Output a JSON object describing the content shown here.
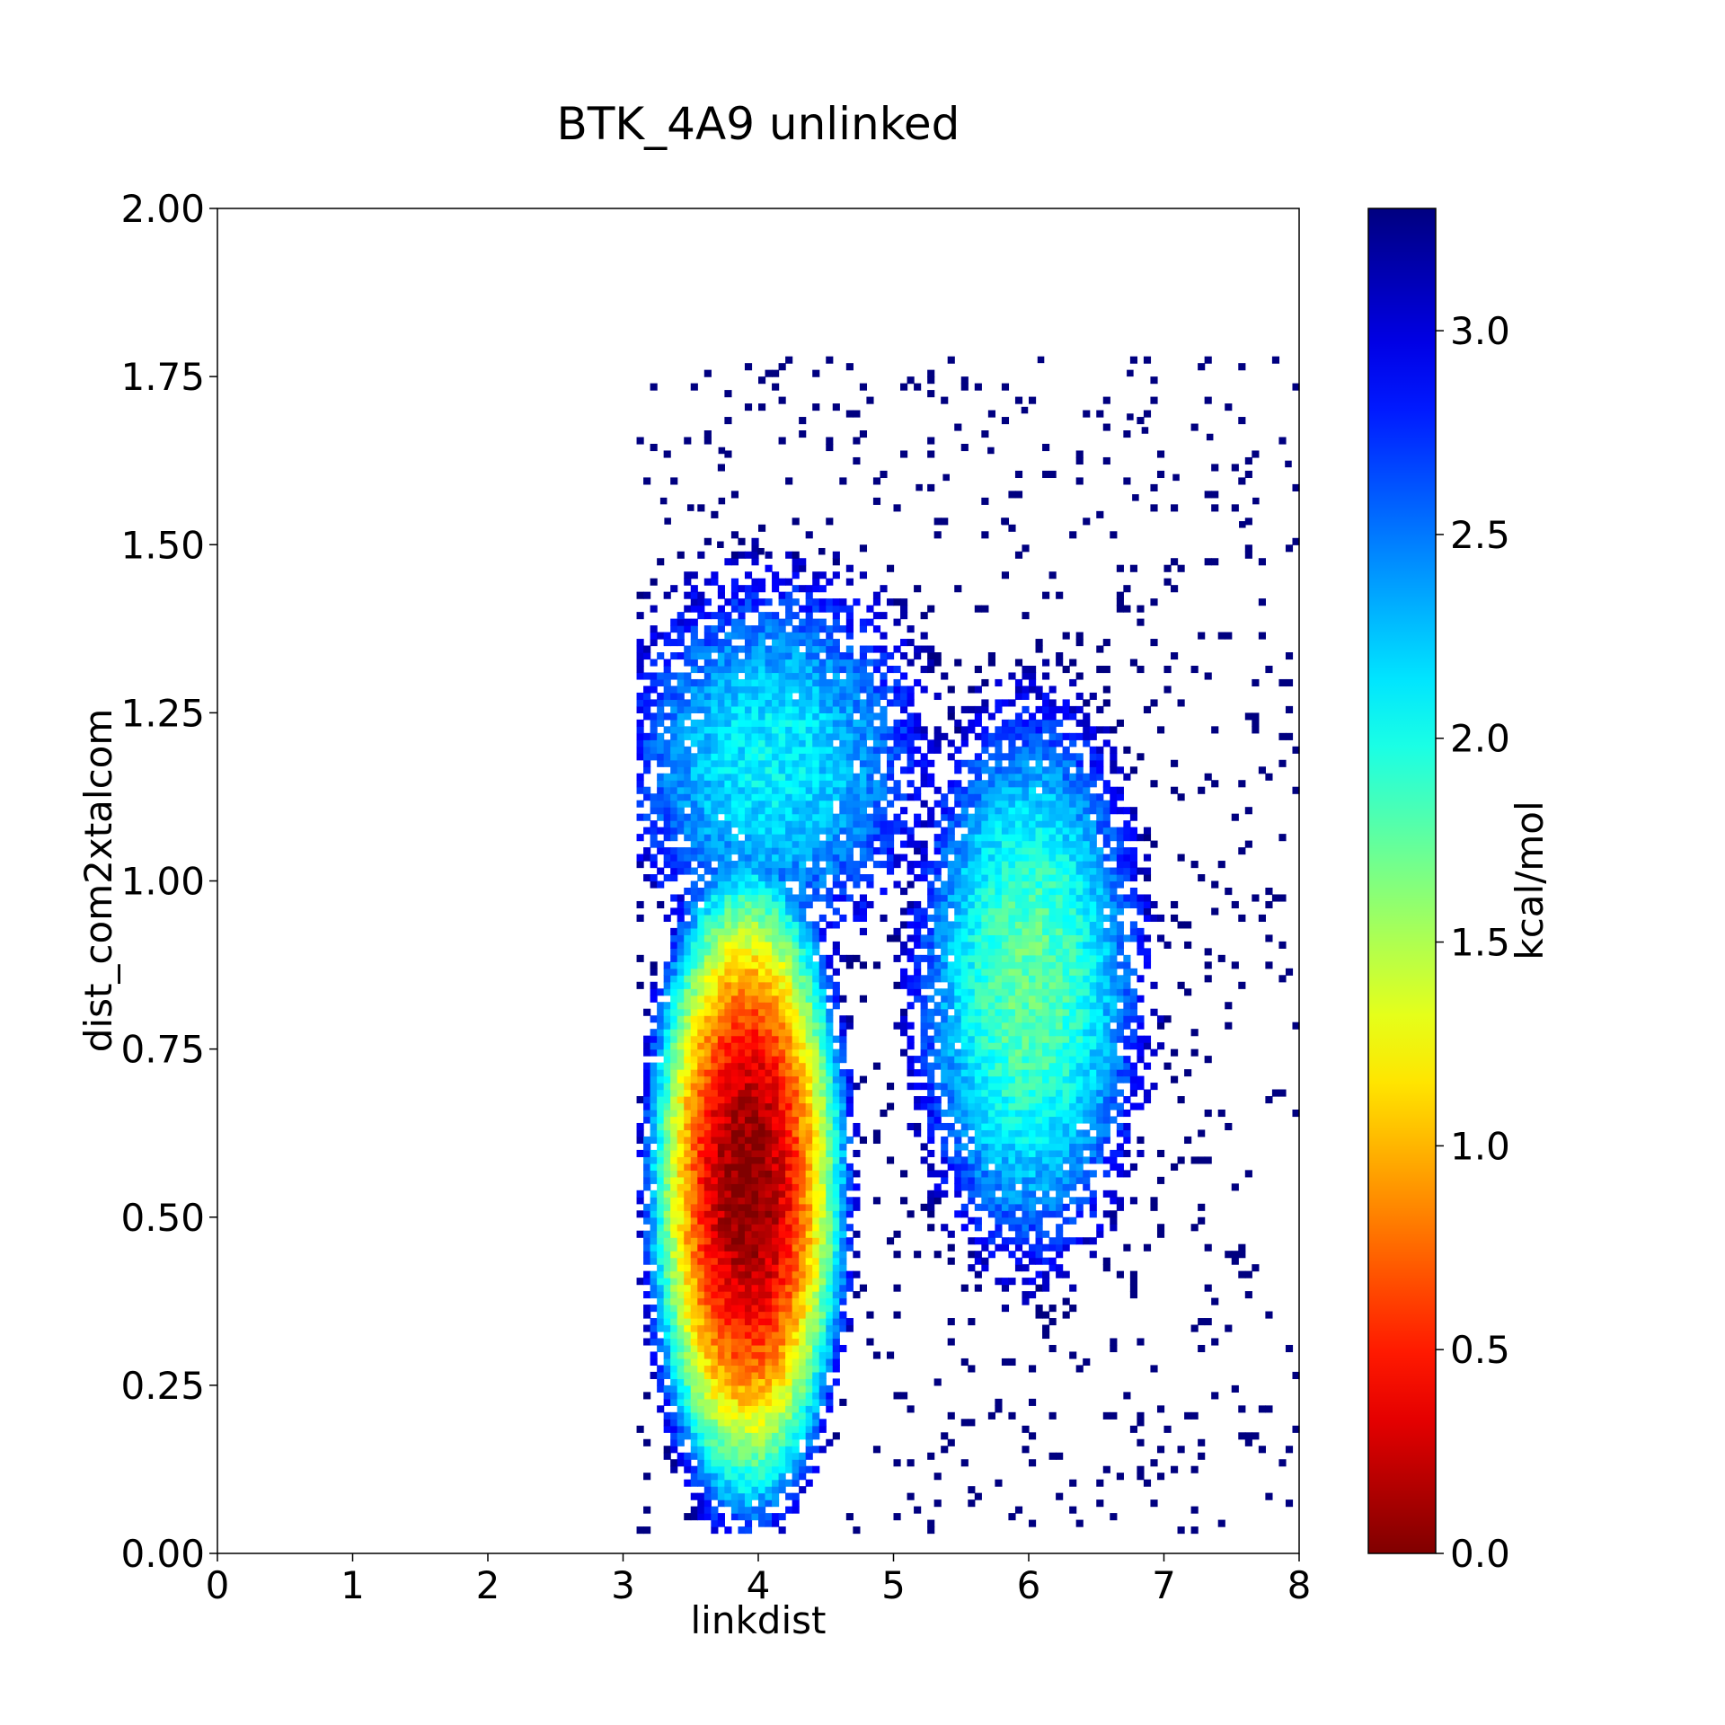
{
  "chart_data": {
    "type": "heatmap",
    "title": "BTK_4A9 unlinked",
    "xlabel": "linkdist",
    "ylabel": "dist_com2xtalcom",
    "xlim": [
      0,
      8
    ],
    "ylim": [
      0,
      2
    ],
    "x_ticks": [
      "0",
      "1",
      "2",
      "3",
      "4",
      "5",
      "6",
      "7",
      "8"
    ],
    "y_ticks": [
      "0.00",
      "0.25",
      "0.50",
      "0.75",
      "1.00",
      "1.25",
      "1.50",
      "1.75",
      "2.00"
    ],
    "grid": false,
    "colormap": "jet_r",
    "colorbar": {
      "label": "kcal/mol",
      "range": [
        0,
        3.3
      ],
      "ticks": [
        "0.0",
        "0.5",
        "1.0",
        "1.5",
        "2.0",
        "2.5",
        "3.0"
      ]
    },
    "bins": {
      "x_count": 160,
      "y_count": 200
    },
    "free_energy_model": {
      "description": "Free energy landscape (kcal/mol), minimum 0.0 near linkdist 3.9, dist 0.55",
      "global_minimum": {
        "linkdist": 3.9,
        "dist_com2xtalcom": 0.55,
        "value": 0.0
      },
      "secondary_basin": {
        "linkdist": 6.0,
        "dist_com2xtalcom": 0.85,
        "value": 1.8
      },
      "populated_region": {
        "linkdist": [
          3.1,
          8.0
        ],
        "dist_com2xtalcom": [
          0.03,
          1.78
        ]
      },
      "max_value": 3.3
    },
    "outlier_points": [
      {
        "x": 6.09,
        "y": 1.775
      },
      {
        "x": 6.75,
        "y": 1.755
      },
      {
        "x": 5.97,
        "y": 1.7
      },
      {
        "x": 6.75,
        "y": 1.69
      },
      {
        "x": 6.86,
        "y": 1.67
      },
      {
        "x": 3.73,
        "y": 1.64
      },
      {
        "x": 5.72,
        "y": 1.64
      },
      {
        "x": 7.34,
        "y": 1.66
      },
      {
        "x": 7.92,
        "y": 1.62
      },
      {
        "x": 7.09,
        "y": 1.6
      },
      {
        "x": 5.39,
        "y": 1.6
      },
      {
        "x": 5.19,
        "y": 1.585
      },
      {
        "x": 3.3,
        "y": 1.565
      },
      {
        "x": 3.73,
        "y": 1.565
      },
      {
        "x": 6.79,
        "y": 1.57
      },
      {
        "x": 7.68,
        "y": 1.565
      },
      {
        "x": 3.5,
        "y": 1.555
      },
      {
        "x": 3.33,
        "y": 1.535
      },
      {
        "x": 5.82,
        "y": 1.535
      },
      {
        "x": 3.72,
        "y": 1.5
      },
      {
        "x": 4.02,
        "y": 1.49
      },
      {
        "x": 4.47,
        "y": 1.49
      },
      {
        "x": 7.58,
        "y": 1.53
      }
    ]
  }
}
